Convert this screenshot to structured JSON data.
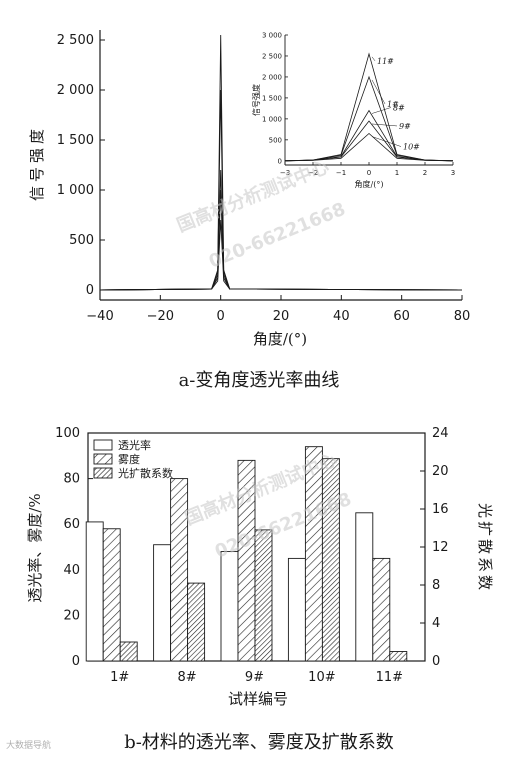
{
  "chart_data": [
    {
      "type": "line",
      "caption": "a-变角度透光率曲线",
      "xlabel": "角度/(°)",
      "ylabel": "信号强度",
      "xlim": [
        -40,
        80
      ],
      "ylim": [
        -100,
        2600
      ],
      "x_ticks": [
        -40,
        -20,
        0,
        20,
        40,
        60,
        80
      ],
      "y_ticks": [
        0,
        500,
        1000,
        1500,
        2000,
        2500
      ],
      "y_tick_labels": [
        "0",
        "500",
        "1 000",
        "1 500",
        "2 000",
        "2 500"
      ],
      "series": [
        {
          "x": [
            -40,
            -3,
            -1,
            0,
            1,
            3,
            80
          ],
          "y": [
            0,
            10,
            200,
            2550,
            200,
            10,
            0
          ]
        },
        {
          "x": [
            -40,
            -3,
            -1,
            0,
            1,
            3,
            80
          ],
          "y": [
            0,
            10,
            180,
            2000,
            180,
            10,
            0
          ]
        },
        {
          "x": [
            -40,
            -3,
            -1,
            0,
            1,
            3,
            80
          ],
          "y": [
            0,
            10,
            150,
            1200,
            150,
            10,
            0
          ]
        },
        {
          "x": [
            -40,
            -3,
            -1,
            0,
            1,
            3,
            80
          ],
          "y": [
            0,
            10,
            120,
            1000,
            120,
            10,
            0
          ]
        },
        {
          "x": [
            -40,
            -3,
            -1,
            0,
            1,
            3,
            80
          ],
          "y": [
            0,
            10,
            90,
            700,
            90,
            10,
            0
          ]
        }
      ],
      "inset": {
        "type": "line",
        "xlabel": "角度/(°)",
        "ylabel": "信号强度",
        "xlim": [
          -3,
          3
        ],
        "ylim": [
          -100,
          3000
        ],
        "x_ticks": [
          -3,
          -2,
          -1,
          0,
          1,
          2,
          3
        ],
        "y_ticks": [
          0,
          500,
          1000,
          1500,
          2000,
          2500,
          3000
        ],
        "series": [
          {
            "name": "11#",
            "x": [
              -3,
              -2,
              -1,
              0,
              1,
              2,
              3
            ],
            "y": [
              0,
              20,
              150,
              2550,
              150,
              20,
              0
            ]
          },
          {
            "name": "1#",
            "x": [
              -3,
              -2,
              -1,
              0,
              1,
              2,
              3
            ],
            "y": [
              0,
              20,
              130,
              2000,
              130,
              20,
              0
            ]
          },
          {
            "name": "8#",
            "x": [
              -3,
              -2,
              -1,
              0,
              1,
              2,
              3
            ],
            "y": [
              0,
              15,
              100,
              1200,
              100,
              15,
              0
            ]
          },
          {
            "name": "9#",
            "x": [
              -3,
              -2,
              -1,
              0,
              1,
              2,
              3
            ],
            "y": [
              0,
              15,
              90,
              950,
              90,
              15,
              0
            ]
          },
          {
            "name": "10#",
            "x": [
              -3,
              -2,
              -1,
              0,
              1,
              2,
              3
            ],
            "y": [
              0,
              10,
              60,
              650,
              60,
              10,
              0
            ]
          }
        ]
      }
    },
    {
      "type": "bar",
      "caption": "b-材料的透光率、雾度及扩散系数",
      "xlabel": "试样编号",
      "ylabel": "透光率、雾度/%",
      "y2label": "光扩散系数",
      "categories": [
        "1#",
        "8#",
        "9#",
        "10#",
        "11#"
      ],
      "ylim": [
        0,
        100
      ],
      "y2lim": [
        0,
        24
      ],
      "y_ticks": [
        0,
        20,
        40,
        60,
        80,
        100
      ],
      "y2_ticks": [
        0,
        4,
        8,
        12,
        16,
        20,
        24
      ],
      "legend_position": "top-left",
      "series": [
        {
          "name": "透光率",
          "axis": "left",
          "values": [
            61,
            51,
            48,
            45,
            65
          ],
          "fill": "plain"
        },
        {
          "name": "雾度",
          "axis": "left",
          "values": [
            58,
            80,
            88,
            94,
            45
          ],
          "fill": "hatch-wide"
        },
        {
          "name": "光扩散系数",
          "axis": "right",
          "values": [
            2,
            8.2,
            13.8,
            21.3,
            1.0
          ],
          "fill": "hatch-dense"
        }
      ]
    }
  ],
  "watermarks": [
    "国高材分析测试中心",
    "020-66221668",
    "国高材分析测试中心",
    "020-66221668"
  ],
  "corner_mark": "大数据导航"
}
